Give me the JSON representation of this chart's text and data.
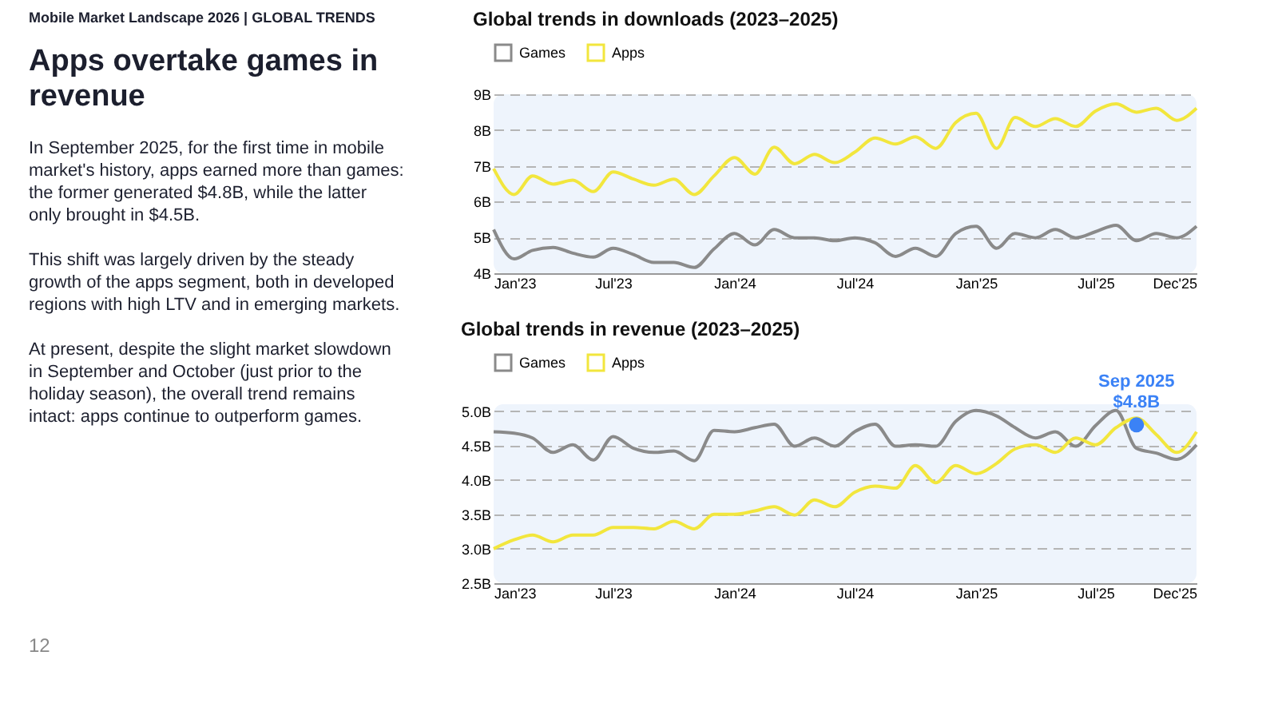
{
  "chart_data": [
    {
      "type": "other",
      "title": "Apps overtake games in revenue",
      "subtitle": "Mobile Market Landscape 2026 | GLOBAL TRENDS",
      "annotations": [
        "In September 2025, for the first time in mobile market's history, apps earned more than games: the former generated $4.8B, while the latter only brought in $4.5B.",
        "This shift was largely driven by the steady growth of the apps segment, both in developed regions with high LTV and in emerging markets.",
        "At present, despite the slight market slowdown in September and October (just prior to the holiday season), the overall trend remains intact: apps continue to outperform games.",
        "12"
      ]
    },
    {
      "type": "line",
      "title": "Global trends in downloads (2023–2025)",
      "x": [
        "2023-01",
        "2023-02",
        "2023-03",
        "2023-04",
        "2023-05",
        "2023-06",
        "2023-07",
        "2023-08",
        "2023-09",
        "2023-10",
        "2023-11",
        "2023-12",
        "2024-01",
        "2024-02",
        "2024-03",
        "2024-04",
        "2024-05",
        "2024-06",
        "2024-07",
        "2024-08",
        "2024-09",
        "2024-10",
        "2024-11",
        "2024-12",
        "2025-01",
        "2025-02",
        "2025-03",
        "2025-04",
        "2025-05",
        "2025-06",
        "2025-07",
        "2025-08",
        "2025-09",
        "2025-10",
        "2025-11",
        "2025-12"
      ],
      "series": [
        {
          "name": "Games",
          "color": "#8a8a8a",
          "values": [
            5.22,
            4.4,
            4.64,
            4.72,
            4.56,
            4.45,
            4.7,
            4.52,
            4.3,
            4.3,
            4.16,
            4.68,
            5.11,
            4.79,
            5.22,
            4.99,
            4.99,
            4.91,
            4.99,
            4.85,
            4.47,
            4.7,
            4.47,
            5.11,
            5.31,
            4.7,
            5.11,
            4.99,
            5.22,
            4.99,
            5.16,
            5.34,
            4.91,
            5.11,
            4.99,
            5.31
          ]
        },
        {
          "name": "Apps",
          "color": "#f2e63d",
          "values": [
            6.92,
            6.2,
            6.72,
            6.49,
            6.6,
            6.28,
            6.83,
            6.63,
            6.46,
            6.63,
            6.2,
            6.72,
            7.23,
            6.77,
            7.52,
            7.06,
            7.32,
            7.09,
            7.38,
            7.78,
            7.61,
            7.81,
            7.49,
            8.21,
            8.47,
            7.49,
            8.35,
            8.1,
            8.32,
            8.1,
            8.53,
            8.73,
            8.5,
            8.61,
            8.27,
            8.61
          ]
        }
      ],
      "xlim": [
        "2023-01",
        "2025-12"
      ],
      "xticks": [
        {
          "value": "2023-01",
          "label": "Jan'23"
        },
        {
          "value": "2023-07",
          "label": "Jul'23"
        },
        {
          "value": "2024-01",
          "label": "Jan'24"
        },
        {
          "value": "2024-07",
          "label": "Jul'24"
        },
        {
          "value": "2025-01",
          "label": "Jan'25"
        },
        {
          "value": "2025-07",
          "label": "Jul'25"
        },
        {
          "value": "2025-12",
          "label": "Dec'25"
        }
      ],
      "ylim": [
        4,
        9
      ],
      "yticks": [
        {
          "value": 4,
          "label": "4B"
        },
        {
          "value": 5,
          "label": "5B"
        },
        {
          "value": 6,
          "label": "6B"
        },
        {
          "value": 7,
          "label": "7B"
        },
        {
          "value": 8,
          "label": "8B"
        },
        {
          "value": 9,
          "label": "9B"
        }
      ],
      "grid": "y",
      "legend": "top",
      "marker": "none",
      "line_style": "solid"
    },
    {
      "type": "line",
      "title": "Global trends in revenue (2023–2025)",
      "x": [
        "2023-01",
        "2023-02",
        "2023-03",
        "2023-04",
        "2023-05",
        "2023-06",
        "2023-07",
        "2023-08",
        "2023-09",
        "2023-10",
        "2023-11",
        "2023-12",
        "2024-01",
        "2024-02",
        "2024-03",
        "2024-04",
        "2024-05",
        "2024-06",
        "2024-07",
        "2024-08",
        "2024-09",
        "2024-10",
        "2024-11",
        "2024-12",
        "2025-01",
        "2025-02",
        "2025-03",
        "2025-04",
        "2025-05",
        "2025-06",
        "2025-07",
        "2025-08",
        "2025-09",
        "2025-10",
        "2025-11",
        "2025-12"
      ],
      "series": [
        {
          "name": "Games",
          "color": "#8a8a8a",
          "values": [
            4.7,
            4.68,
            4.61,
            4.4,
            4.51,
            4.29,
            4.63,
            4.46,
            4.4,
            4.42,
            4.28,
            4.72,
            4.7,
            4.76,
            4.81,
            4.49,
            4.61,
            4.49,
            4.7,
            4.81,
            4.49,
            4.51,
            4.49,
            4.85,
            5.01,
            4.93,
            4.76,
            4.61,
            4.7,
            4.49,
            4.79,
            5.01,
            4.46,
            4.39,
            4.3,
            4.51
          ]
        },
        {
          "name": "Apps",
          "color": "#f2e63d",
          "values": [
            3.0,
            3.13,
            3.2,
            3.1,
            3.2,
            3.2,
            3.31,
            3.31,
            3.29,
            3.4,
            3.29,
            3.5,
            3.5,
            3.55,
            3.61,
            3.49,
            3.71,
            3.61,
            3.82,
            3.91,
            3.88,
            4.21,
            3.96,
            4.21,
            4.09,
            4.24,
            4.45,
            4.51,
            4.4,
            4.61,
            4.51,
            4.76,
            4.9,
            4.66,
            4.4,
            4.7
          ]
        }
      ],
      "xlim": [
        "2023-01",
        "2025-12"
      ],
      "xticks": [
        {
          "value": "2023-01",
          "label": "Jan'23"
        },
        {
          "value": "2023-07",
          "label": "Jul'23"
        },
        {
          "value": "2024-01",
          "label": "Jan'24"
        },
        {
          "value": "2024-07",
          "label": "Jul'24"
        },
        {
          "value": "2025-01",
          "label": "Jan'25"
        },
        {
          "value": "2025-07",
          "label": "Jul'25"
        },
        {
          "value": "2025-12",
          "label": "Dec'25"
        }
      ],
      "ylim": [
        2.5,
        5.1
      ],
      "yticks": [
        {
          "value": 2.5,
          "label": "2.5B"
        },
        {
          "value": 3.0,
          "label": "3.0B"
        },
        {
          "value": 3.5,
          "label": "3.5B"
        },
        {
          "value": 4.0,
          "label": "4.0B"
        },
        {
          "value": 4.5,
          "label": "4.5B"
        },
        {
          "value": 5.0,
          "label": "5.0B"
        }
      ],
      "annotations": [
        {
          "text": "Sep 2025\n$4.8B",
          "x": "2025-09",
          "y": 4.8
        }
      ],
      "grid": "y",
      "legend": "top",
      "marker": "none",
      "line_style": "solid"
    }
  ]
}
